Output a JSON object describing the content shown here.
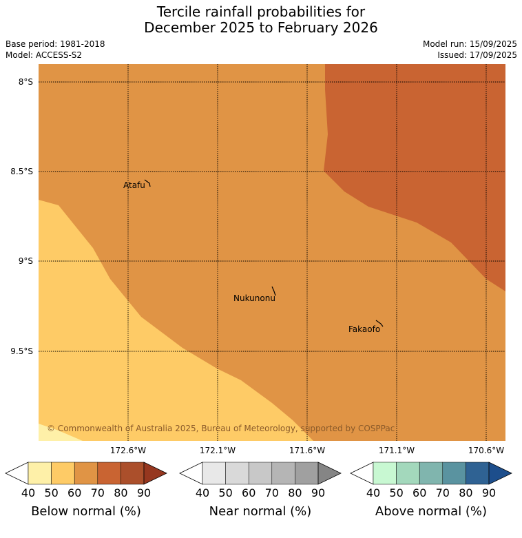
{
  "header": {
    "title_line1": "Tercile rainfall probabilities for",
    "title_line2": "December 2025 to February 2026",
    "base_period": "Base period: 1981-2018",
    "model": "Model: ACCESS-S2",
    "model_run": "Model run: 15/09/2025",
    "issued": "Issued: 17/09/2025"
  },
  "map": {
    "lat_labels": [
      "8°S",
      "8.5°S",
      "9°S",
      "9.5°S"
    ],
    "lon_labels": [
      "172.6°W",
      "172.1°W",
      "171.6°W",
      "171.1°W",
      "170.6°W"
    ],
    "places": [
      {
        "name": "Atafu"
      },
      {
        "name": "Nukunonu"
      },
      {
        "name": "Fakaofo"
      }
    ],
    "copyright": "© Commonwealth of Australia 2025, Bureau of Meteorology, supported by COSPPac",
    "colors": {
      "below_50_60": "#fecb66",
      "below_60_70": "#e09445",
      "below_70_80": "#c96432",
      "below_40_50": "#fef0a8"
    }
  },
  "colorbars": [
    {
      "title": "Below normal (%)",
      "ticks": [
        "40",
        "50",
        "60",
        "70",
        "80",
        "90"
      ],
      "colors": [
        "#ffffff",
        "#fef0a8",
        "#fecb66",
        "#e09445",
        "#c96432",
        "#ab4f2b",
        "#96371f"
      ]
    },
    {
      "title": "Near normal (%)",
      "ticks": [
        "40",
        "50",
        "60",
        "70",
        "80",
        "90"
      ],
      "colors": [
        "#ffffff",
        "#e8e8e8",
        "#d9d9d9",
        "#c8c8c8",
        "#b5b5b5",
        "#a0a0a0",
        "#858585"
      ]
    },
    {
      "title": "Above normal (%)",
      "ticks": [
        "40",
        "50",
        "60",
        "70",
        "80",
        "90"
      ],
      "colors": [
        "#ffffff",
        "#c8f8d2",
        "#a3d8bc",
        "#80b5ae",
        "#5a93a0",
        "#2f6293",
        "#1d4e8c"
      ]
    }
  ]
}
